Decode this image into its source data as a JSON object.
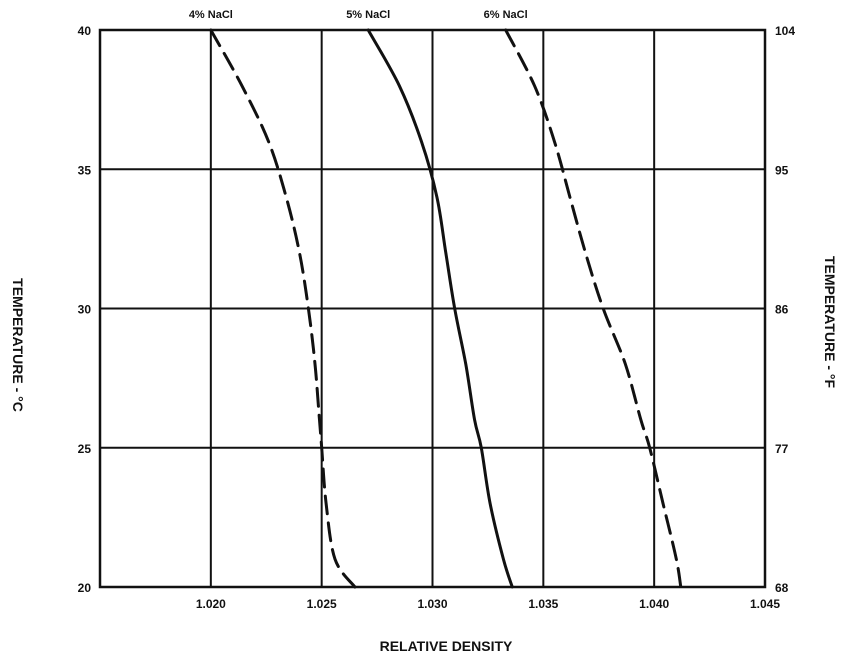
{
  "chart_data": {
    "type": "line",
    "xlabel": "RELATIVE DENSITY",
    "ylabel_left": "TEMPERATURE - °C",
    "ylabel_right": "TEMPERATURE - °F",
    "xlim": [
      1.015,
      1.045
    ],
    "ylim": [
      20,
      40
    ],
    "x_ticks": [
      "1.020",
      "1.025",
      "1.030",
      "1.035",
      "1.040",
      "1.045"
    ],
    "x_tick_values": [
      1.02,
      1.025,
      1.03,
      1.035,
      1.04,
      1.045
    ],
    "y_left_ticks": [
      "20",
      "25",
      "30",
      "35",
      "40"
    ],
    "y_left_tick_values": [
      20,
      25,
      30,
      35,
      40
    ],
    "y_right_ticks": [
      "68",
      "77",
      "86",
      "95",
      "104"
    ],
    "y_right_tick_values": [
      20,
      25,
      30,
      35,
      40
    ],
    "grid": true,
    "series": [
      {
        "name": "4% NaCl",
        "style": "dashed",
        "points": [
          [
            1.02,
            40
          ],
          [
            1.0214,
            38
          ],
          [
            1.0226,
            36
          ],
          [
            1.0234,
            34
          ],
          [
            1.024,
            32
          ],
          [
            1.0244,
            30
          ],
          [
            1.0247,
            28
          ],
          [
            1.0249,
            26
          ],
          [
            1.025,
            25
          ],
          [
            1.0252,
            23
          ],
          [
            1.0256,
            21
          ],
          [
            1.0265,
            20
          ]
        ]
      },
      {
        "name": "5% NaCl",
        "style": "solid",
        "points": [
          [
            1.0271,
            40
          ],
          [
            1.0285,
            38
          ],
          [
            1.0295,
            36
          ],
          [
            1.0302,
            34
          ],
          [
            1.0306,
            32
          ],
          [
            1.031,
            30
          ],
          [
            1.0315,
            28
          ],
          [
            1.0319,
            26
          ],
          [
            1.0322,
            25
          ],
          [
            1.0326,
            23
          ],
          [
            1.0332,
            21
          ],
          [
            1.0336,
            20
          ]
        ]
      },
      {
        "name": "6% NaCl",
        "style": "dashed",
        "points": [
          [
            1.0333,
            40
          ],
          [
            1.0346,
            38
          ],
          [
            1.0355,
            36
          ],
          [
            1.0362,
            34
          ],
          [
            1.0369,
            32
          ],
          [
            1.0377,
            30
          ],
          [
            1.0387,
            28
          ],
          [
            1.0394,
            26
          ],
          [
            1.0398,
            25
          ],
          [
            1.0404,
            23
          ],
          [
            1.041,
            21
          ],
          [
            1.0412,
            20
          ]
        ]
      }
    ]
  }
}
